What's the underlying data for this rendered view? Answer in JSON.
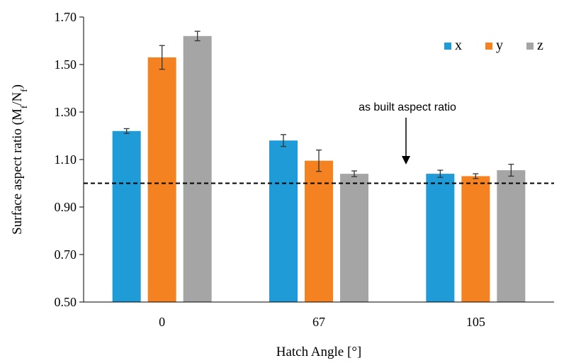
{
  "chart_data": {
    "type": "bar",
    "title": "",
    "xlabel": "Hatch Angle [°]",
    "ylabel": {
      "prefix": "Surface aspect ratio (M",
      "sub1": "f",
      "mid": "/N",
      "sub2": "f",
      "suffix": ")"
    },
    "categories": [
      "0",
      "67",
      "105"
    ],
    "series": [
      {
        "name": "x",
        "color": "#1f9bd7",
        "values": [
          1.22,
          1.18,
          1.04
        ],
        "errors": [
          0.01,
          0.025,
          0.015
        ]
      },
      {
        "name": "y",
        "color": "#f58220",
        "values": [
          1.53,
          1.095,
          1.03
        ],
        "errors": [
          0.05,
          0.045,
          0.01
        ]
      },
      {
        "name": "z",
        "color": "#a5a5a5",
        "values": [
          1.62,
          1.04,
          1.055
        ],
        "errors": [
          0.02,
          0.012,
          0.025
        ]
      }
    ],
    "ylim": [
      0.5,
      1.7
    ],
    "yticks": [
      "0.50",
      "0.70",
      "0.90",
      "1.10",
      "1.30",
      "1.50",
      "1.70"
    ],
    "reference_line": {
      "value": 1.0,
      "style": "dashed",
      "label": "as built aspect ratio"
    },
    "legend_position": "top-right",
    "grid": false
  }
}
